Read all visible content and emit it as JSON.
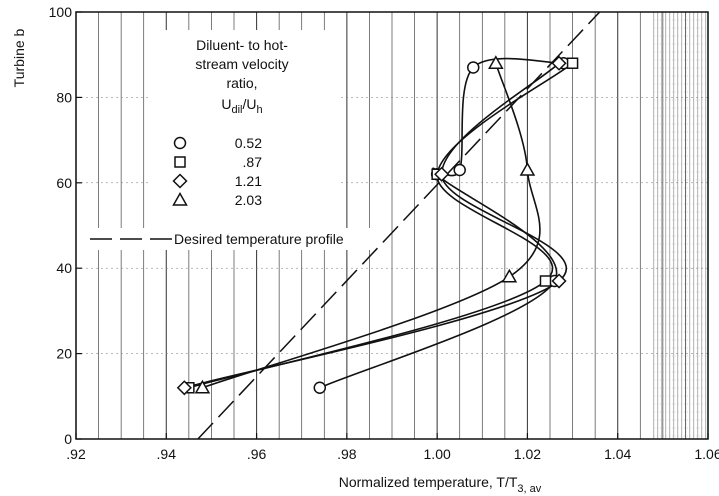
{
  "chart_data": {
    "type": "line",
    "xlabel": "Normalized temperature, T/T",
    "xlabel_sub": "3, av",
    "ylabel": "Turbine b",
    "xlim": [
      0.92,
      1.06
    ],
    "ylim": [
      0,
      100
    ],
    "x_ticks": [
      0.92,
      0.94,
      0.96,
      0.98,
      1.0,
      1.02,
      1.04,
      1.06
    ],
    "x_tick_labels": [
      ".92",
      ".94",
      ".96",
      ".98",
      "1.00",
      "1.02",
      "1.04",
      "1.06"
    ],
    "y_ticks": [
      0,
      20,
      40,
      60,
      80,
      100
    ],
    "y_tick_labels": [
      "0",
      "20",
      "40",
      "60",
      "80",
      "100"
    ],
    "legend": {
      "title_lines": [
        "Diluent- to hot-",
        "stream velocity",
        "ratio,"
      ],
      "symbol_label": "U",
      "symbol_sub": "dil",
      "symbol_sep": "/U",
      "symbol_sub2": "h",
      "placement": "upper-left"
    },
    "series": [
      {
        "name": "0.52",
        "marker": "circle",
        "x": [
          0.974,
          1.0,
          1.005,
          1.008,
          1.026,
          1.028
        ],
        "y": [
          12,
          62,
          63,
          87,
          37,
          88
        ]
      },
      {
        "name": ".87",
        "marker": "square",
        "x": [
          0.945,
          1.0,
          1.024,
          1.03
        ],
        "y": [
          12,
          62,
          37,
          88
        ]
      },
      {
        "name": "1.21",
        "marker": "diamond",
        "x": [
          0.944,
          1.001,
          1.027,
          1.027
        ],
        "y": [
          12,
          62,
          37,
          88
        ]
      },
      {
        "name": "2.03",
        "marker": "triangle",
        "x": [
          0.948,
          1.016,
          1.02,
          1.013
        ],
        "y": [
          12,
          38,
          63,
          88
        ]
      }
    ],
    "reference_line": {
      "name": "Desired temperature profile",
      "x": [
        0.947,
        1.036
      ],
      "y": [
        0,
        100
      ]
    },
    "grid": true
  }
}
